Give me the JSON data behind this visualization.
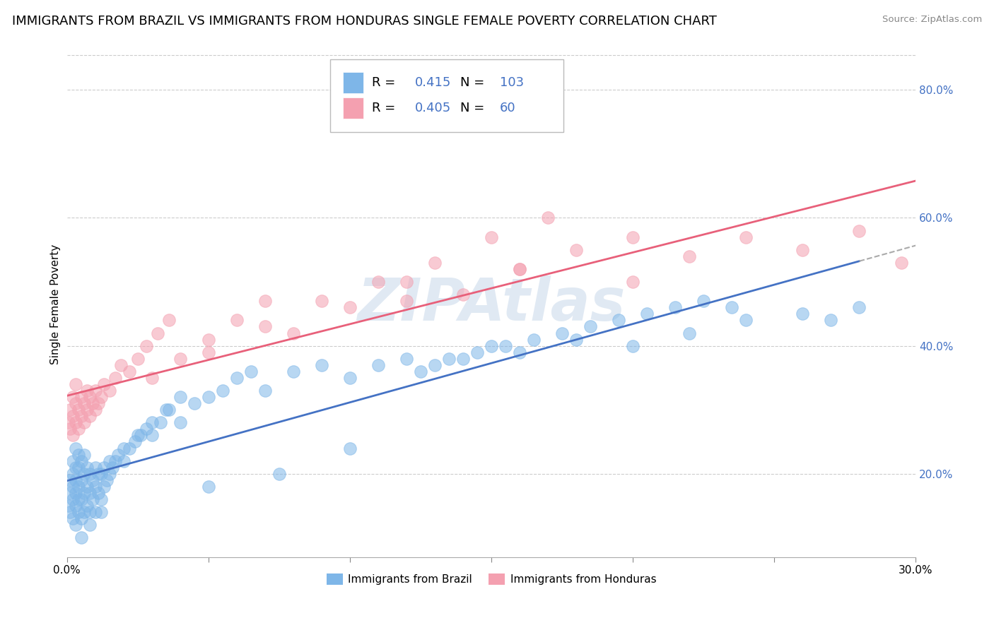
{
  "title": "IMMIGRANTS FROM BRAZIL VS IMMIGRANTS FROM HONDURAS SINGLE FEMALE POVERTY CORRELATION CHART",
  "source": "Source: ZipAtlas.com",
  "ylabel": "Single Female Poverty",
  "R_brazil": 0.415,
  "N_brazil": 103,
  "R_honduras": 0.405,
  "N_honduras": 60,
  "brazil_color": "#7EB6E8",
  "honduras_color": "#F4A0B0",
  "brazil_line_color": "#4472C4",
  "honduras_line_color": "#E8607A",
  "dash_line_color": "#AAAAAA",
  "watermark_color": "#C8D8EA",
  "title_fontsize": 13,
  "axis_label_fontsize": 11,
  "tick_fontsize": 11,
  "legend_fontsize": 13,
  "stat_color": "#4472C4",
  "xmin": 0.0,
  "xmax": 0.3,
  "ymin": 0.07,
  "ymax": 0.86,
  "legend_brazil_label": "Immigrants from Brazil",
  "legend_honduras_label": "Immigrants from Honduras",
  "brazil_x": [
    0.0005,
    0.001,
    0.001,
    0.001,
    0.002,
    0.002,
    0.002,
    0.002,
    0.002,
    0.003,
    0.003,
    0.003,
    0.003,
    0.003,
    0.003,
    0.004,
    0.004,
    0.004,
    0.004,
    0.004,
    0.005,
    0.005,
    0.005,
    0.005,
    0.006,
    0.006,
    0.006,
    0.006,
    0.007,
    0.007,
    0.007,
    0.008,
    0.008,
    0.008,
    0.009,
    0.009,
    0.01,
    0.01,
    0.01,
    0.011,
    0.011,
    0.012,
    0.012,
    0.013,
    0.013,
    0.014,
    0.015,
    0.016,
    0.017,
    0.018,
    0.02,
    0.022,
    0.024,
    0.026,
    0.028,
    0.03,
    0.033,
    0.036,
    0.04,
    0.045,
    0.05,
    0.055,
    0.06,
    0.065,
    0.07,
    0.08,
    0.09,
    0.1,
    0.11,
    0.12,
    0.13,
    0.14,
    0.15,
    0.16,
    0.18,
    0.2,
    0.22,
    0.24,
    0.26,
    0.27,
    0.28,
    0.125,
    0.135,
    0.145,
    0.155,
    0.165,
    0.175,
    0.185,
    0.195,
    0.205,
    0.215,
    0.225,
    0.235,
    0.015,
    0.02,
    0.025,
    0.03,
    0.035,
    0.04,
    0.005,
    0.008,
    0.012,
    0.05,
    0.075,
    0.1
  ],
  "brazil_y": [
    0.15,
    0.14,
    0.17,
    0.19,
    0.13,
    0.16,
    0.18,
    0.2,
    0.22,
    0.12,
    0.15,
    0.17,
    0.19,
    0.21,
    0.24,
    0.14,
    0.16,
    0.18,
    0.21,
    0.23,
    0.13,
    0.16,
    0.19,
    0.22,
    0.14,
    0.17,
    0.2,
    0.23,
    0.15,
    0.18,
    0.21,
    0.14,
    0.17,
    0.2,
    0.16,
    0.19,
    0.14,
    0.18,
    0.21,
    0.17,
    0.2,
    0.16,
    0.2,
    0.18,
    0.21,
    0.19,
    0.2,
    0.21,
    0.22,
    0.23,
    0.22,
    0.24,
    0.25,
    0.26,
    0.27,
    0.26,
    0.28,
    0.3,
    0.28,
    0.31,
    0.32,
    0.33,
    0.35,
    0.36,
    0.33,
    0.36,
    0.37,
    0.35,
    0.37,
    0.38,
    0.37,
    0.38,
    0.4,
    0.39,
    0.41,
    0.4,
    0.42,
    0.44,
    0.45,
    0.44,
    0.46,
    0.36,
    0.38,
    0.39,
    0.4,
    0.41,
    0.42,
    0.43,
    0.44,
    0.45,
    0.46,
    0.47,
    0.46,
    0.22,
    0.24,
    0.26,
    0.28,
    0.3,
    0.32,
    0.1,
    0.12,
    0.14,
    0.18,
    0.2,
    0.24
  ],
  "honduras_x": [
    0.0005,
    0.001,
    0.001,
    0.002,
    0.002,
    0.002,
    0.003,
    0.003,
    0.003,
    0.004,
    0.004,
    0.005,
    0.005,
    0.006,
    0.006,
    0.007,
    0.007,
    0.008,
    0.008,
    0.009,
    0.01,
    0.01,
    0.011,
    0.012,
    0.013,
    0.015,
    0.017,
    0.019,
    0.022,
    0.025,
    0.028,
    0.032,
    0.036,
    0.04,
    0.05,
    0.06,
    0.07,
    0.08,
    0.1,
    0.12,
    0.14,
    0.16,
    0.18,
    0.2,
    0.22,
    0.24,
    0.26,
    0.28,
    0.295,
    0.12,
    0.16,
    0.2,
    0.03,
    0.05,
    0.07,
    0.09,
    0.11,
    0.13,
    0.15,
    0.17
  ],
  "honduras_y": [
    0.28,
    0.27,
    0.3,
    0.26,
    0.29,
    0.32,
    0.28,
    0.31,
    0.34,
    0.27,
    0.3,
    0.29,
    0.32,
    0.28,
    0.31,
    0.3,
    0.33,
    0.29,
    0.32,
    0.31,
    0.3,
    0.33,
    0.31,
    0.32,
    0.34,
    0.33,
    0.35,
    0.37,
    0.36,
    0.38,
    0.4,
    0.42,
    0.44,
    0.38,
    0.41,
    0.44,
    0.47,
    0.42,
    0.46,
    0.5,
    0.48,
    0.52,
    0.55,
    0.5,
    0.54,
    0.57,
    0.55,
    0.58,
    0.53,
    0.47,
    0.52,
    0.57,
    0.35,
    0.39,
    0.43,
    0.47,
    0.5,
    0.53,
    0.57,
    0.6
  ]
}
